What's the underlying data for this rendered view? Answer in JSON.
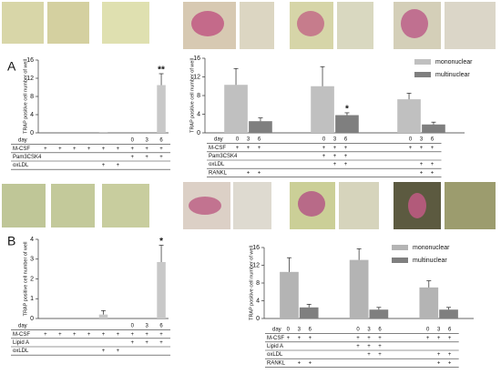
{
  "panel_labels": [
    "A",
    "B"
  ],
  "chart_data": [
    {
      "type": "bar",
      "ylabel": "TRAP positive cell number of well",
      "ylim": [
        0,
        16
      ],
      "yticks": [
        0,
        4,
        8,
        12,
        16
      ],
      "series": [
        {
          "color": "#c8c8c8",
          "values": [
            0,
            0,
            0,
            0,
            0.2,
            0,
            0,
            0,
            10.5
          ],
          "errors": [
            null,
            null,
            null,
            null,
            null,
            null,
            null,
            null,
            2.5
          ],
          "significance": [
            null,
            null,
            null,
            null,
            null,
            null,
            null,
            null,
            "**"
          ]
        }
      ],
      "conditions": {
        "day_label": "day",
        "days": [
          null,
          null,
          null,
          null,
          null,
          null,
          "0",
          "3",
          "6"
        ],
        "rows": [
          {
            "label": "M-CSF",
            "marks": [
              "+",
              "+",
              "+",
              "+",
              "+",
              "+",
              "+",
              "+",
              "+"
            ]
          },
          {
            "label": "Pam3CSK4",
            "marks": [
              null,
              null,
              null,
              null,
              null,
              null,
              "+",
              "+",
              "+"
            ]
          },
          {
            "label": "oxLDL",
            "marks": [
              null,
              null,
              null,
              null,
              "+",
              "+",
              null,
              null,
              null
            ]
          }
        ]
      }
    },
    {
      "type": "grouped",
      "ylabel": "TRAP positive cell number of well",
      "ylim": [
        0,
        16
      ],
      "yticks": [
        0,
        4,
        8,
        12,
        16
      ],
      "series": [
        {
          "name": "mononuclear",
          "color": "#c0c0c0",
          "values": [
            10.3,
            10.0,
            7.2
          ],
          "errors": [
            3.5,
            4.2,
            1.3
          ],
          "significance": [
            null,
            null,
            null
          ]
        },
        {
          "name": "multinuclear",
          "color": "#7f7f7f",
          "values": [
            2.5,
            3.8,
            1.8
          ],
          "errors": [
            0.7,
            0.5,
            0.5
          ],
          "significance": [
            null,
            "*",
            null
          ]
        }
      ],
      "conditions": {
        "day_label": "day",
        "days": [
          "0",
          "3",
          "6",
          "0",
          "3",
          "6",
          "0",
          "3",
          "6"
        ],
        "rows": [
          {
            "label": "M-CSF",
            "marks": [
              "+",
              "+",
              "+",
              "+",
              "+",
              "+",
              "+",
              "+",
              "+"
            ]
          },
          {
            "label": "Pam3CSK4",
            "marks": [
              null,
              null,
              null,
              "+",
              "+",
              "+",
              null,
              null,
              null
            ]
          },
          {
            "label": "oxLDL",
            "marks": [
              null,
              null,
              null,
              null,
              "+",
              "+",
              null,
              "+",
              "+"
            ]
          },
          {
            "label": "RANKL",
            "marks": [
              null,
              "+",
              "+",
              null,
              null,
              null,
              null,
              "+",
              "+"
            ]
          }
        ]
      }
    },
    {
      "type": "bar",
      "ylabel": "TRAP positive cell number of well",
      "ylim": [
        0,
        4
      ],
      "yticks": [
        0,
        1,
        2,
        3,
        4
      ],
      "series": [
        {
          "color": "#c8c8c8",
          "values": [
            0,
            0,
            0,
            0,
            0.2,
            0,
            0,
            0,
            2.85
          ],
          "errors": [
            null,
            null,
            null,
            null,
            0.2,
            null,
            null,
            null,
            0.85
          ],
          "significance": [
            null,
            null,
            null,
            null,
            null,
            null,
            null,
            null,
            "*"
          ]
        }
      ],
      "conditions": {
        "day_label": "day",
        "days": [
          null,
          null,
          null,
          null,
          null,
          null,
          "0",
          "3",
          "6"
        ],
        "rows": [
          {
            "label": "M-CSF",
            "marks": [
              "+",
              "+",
              "+",
              "+",
              "+",
              "+",
              "+",
              "+",
              "+"
            ]
          },
          {
            "label": "Lipid A",
            "marks": [
              null,
              null,
              null,
              null,
              null,
              null,
              "+",
              "+",
              "+"
            ]
          },
          {
            "label": "oxLDL",
            "marks": [
              null,
              null,
              null,
              null,
              "+",
              "+",
              null,
              null,
              null
            ]
          }
        ]
      }
    },
    {
      "type": "grouped",
      "ylabel": "TRAP positive cell number of well",
      "ylim": [
        0,
        16
      ],
      "yticks": [
        0,
        4,
        8,
        12,
        16
      ],
      "series": [
        {
          "name": "mononuclear",
          "color": "#b4b4b4",
          "values": [
            10.5,
            13.2,
            7.0
          ],
          "errors": [
            3.2,
            2.5,
            1.5
          ],
          "significance": [
            null,
            null,
            null
          ]
        },
        {
          "name": "multinuclear",
          "color": "#7f7f7f",
          "values": [
            2.5,
            2.0,
            2.0
          ],
          "errors": [
            0.7,
            0.5,
            0.5
          ],
          "significance": [
            null,
            null,
            null
          ]
        }
      ],
      "conditions": {
        "day_label": "day",
        "days": [
          "0",
          "3",
          "6",
          "0",
          "3",
          "6",
          "0",
          "3",
          "6"
        ],
        "rows": [
          {
            "label": "M-CSF",
            "marks": [
              "+",
              "+",
              "+",
              "+",
              "+",
              "+",
              "+",
              "+",
              "+"
            ]
          },
          {
            "label": "Lipid A",
            "marks": [
              null,
              null,
              null,
              "+",
              "+",
              "+",
              null,
              null,
              null
            ]
          },
          {
            "label": "oxLDL",
            "marks": [
              null,
              null,
              null,
              null,
              "+",
              "+",
              null,
              "+",
              "+"
            ]
          },
          {
            "label": "RANKL",
            "marks": [
              null,
              "+",
              "+",
              null,
              null,
              null,
              null,
              "+",
              "+"
            ]
          }
        ]
      }
    }
  ]
}
